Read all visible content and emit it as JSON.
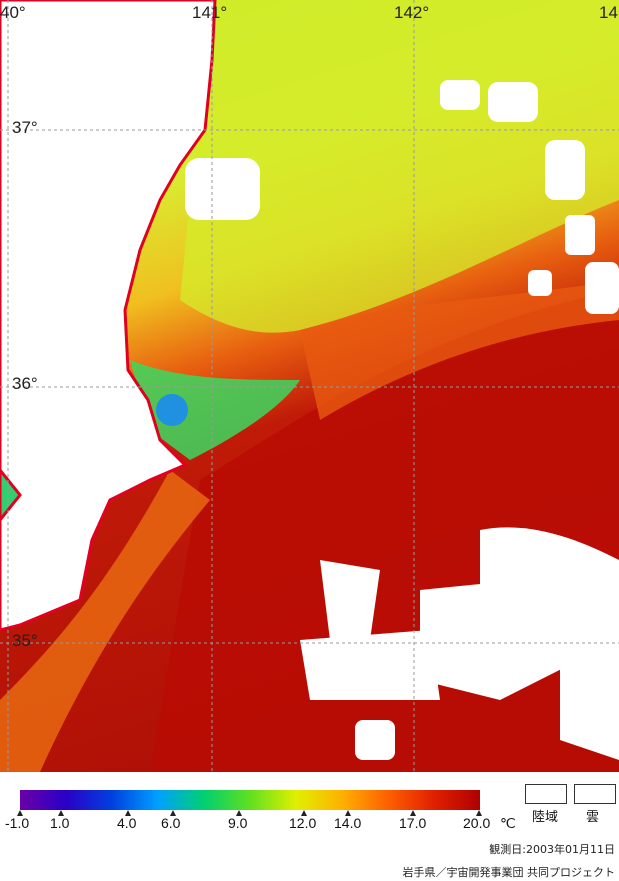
{
  "map": {
    "lon_labels": [
      "40°",
      "141°",
      "142°",
      "14"
    ],
    "lat_labels": [
      "37°",
      "36°",
      "35°"
    ]
  },
  "colorbar": {
    "ticks": [
      "-1.0",
      "1.0",
      "4.0",
      "6.0",
      "9.0",
      "12.0",
      "14.0",
      "17.0",
      "20.0"
    ],
    "unit": "℃",
    "colors": [
      "#6a00a8",
      "#2a00c8",
      "#0040e0",
      "#00a0ff",
      "#00d070",
      "#60e020",
      "#e0f000",
      "#ffb000",
      "#ff6000",
      "#e02000",
      "#b00000"
    ]
  },
  "legend": {
    "land": "陸域",
    "cloud": "雲"
  },
  "footer": {
    "date": "観測日:2003年01月11日",
    "credit": "岩手県／宇宙開発事業団 共同プロジェクト"
  }
}
